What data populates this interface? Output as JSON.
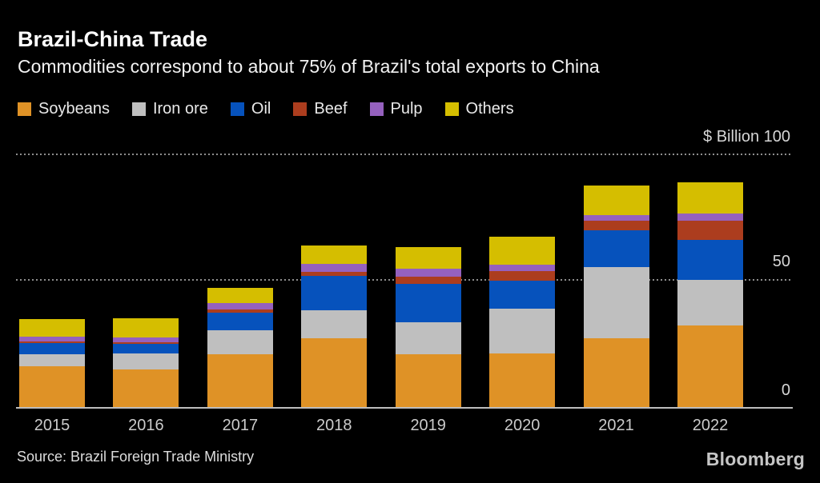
{
  "header": {
    "title": "Brazil-China Trade",
    "subtitle": "Commodities correspond to about 75% of Brazil's total exports to China"
  },
  "legend": {
    "items": [
      {
        "label": "Soybeans",
        "color": "#DF9226"
      },
      {
        "label": "Iron ore",
        "color": "#BFBFBF"
      },
      {
        "label": "Oil",
        "color": "#0652BC"
      },
      {
        "label": "Beef",
        "color": "#AC3D1E"
      },
      {
        "label": "Pulp",
        "color": "#9561BE"
      },
      {
        "label": "Others",
        "color": "#D5BE00"
      }
    ]
  },
  "y_axis": {
    "unit_top_label": "$ Billion 100",
    "mid_tick": "50",
    "zero_tick": "0"
  },
  "footer": {
    "source": "Source: Brazil Foreign Trade Ministry",
    "brand": "Bloomberg"
  },
  "colors": {
    "background": "#000000",
    "title_text": "#ffffff",
    "axis_text": "#d6d6d6",
    "gridline": "#8e8e8e",
    "baseline": "#bdbdbd"
  },
  "chart_data": {
    "type": "bar",
    "stacked": true,
    "title": "Brazil-China Trade",
    "subtitle": "Commodities correspond to about 75% of Brazil's total exports to China",
    "unit": "$ Billion",
    "categories": [
      "2015",
      "2016",
      "2017",
      "2018",
      "2019",
      "2020",
      "2021",
      "2022"
    ],
    "series": [
      {
        "name": "Soybeans",
        "color": "#DF9226",
        "values": [
          16.2,
          14.8,
          20.8,
          27.3,
          21.0,
          21.1,
          27.3,
          32.3
        ]
      },
      {
        "name": "Iron ore",
        "color": "#BFBFBF",
        "values": [
          4.7,
          6.4,
          9.7,
          11.1,
          12.6,
          17.8,
          28.1,
          18.0
        ]
      },
      {
        "name": "Oil",
        "color": "#0652BC",
        "values": [
          4.3,
          3.8,
          7.0,
          13.5,
          15.0,
          11.2,
          14.5,
          16.0
        ]
      },
      {
        "name": "Beef",
        "color": "#AC3D1E",
        "values": [
          0.7,
          0.8,
          1.1,
          1.7,
          3.1,
          3.7,
          3.7,
          7.6
        ]
      },
      {
        "name": "Pulp",
        "color": "#9561BE",
        "values": [
          1.9,
          1.9,
          2.4,
          3.0,
          3.1,
          2.6,
          2.5,
          2.8
        ]
      },
      {
        "name": "Others",
        "color": "#D5BE00",
        "values": [
          7.1,
          7.4,
          6.1,
          7.3,
          8.4,
          11.0,
          11.6,
          12.3
        ]
      }
    ],
    "totals": [
      34.9,
      35.1,
      47.1,
      63.9,
      63.2,
      67.4,
      87.7,
      89.0
    ],
    "ylim": [
      0,
      100
    ],
    "gridlines_at": [
      50,
      100
    ],
    "grid": true,
    "legend_position": "top",
    "ylabel": "$ Billion",
    "xlabel": "",
    "source": "Brazil Foreign Trade Ministry"
  }
}
